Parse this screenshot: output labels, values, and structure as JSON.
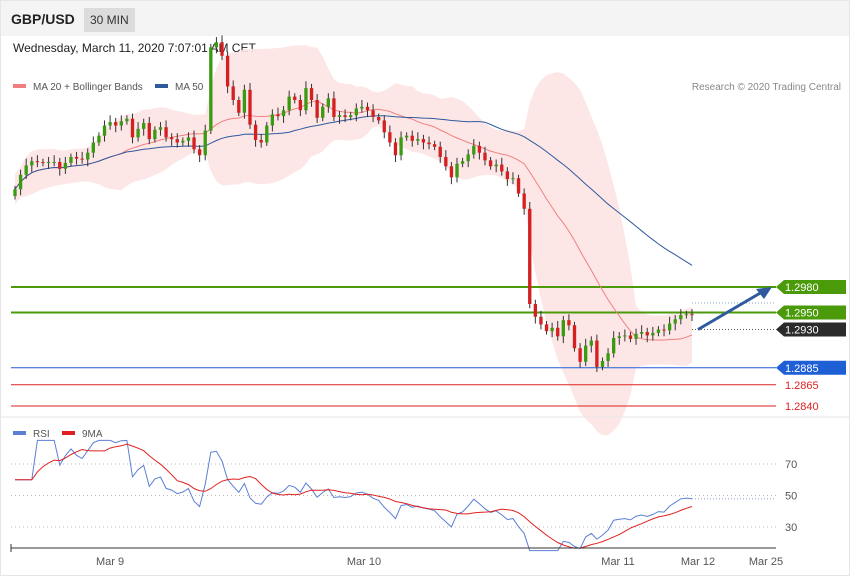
{
  "header": {
    "pair": "GBP/USD",
    "timeframe": "30 MIN"
  },
  "datetime": "Wednesday, March 11, 2020 7:07:01 AM CET",
  "legend": {
    "ma20": "MA 20 + Bollinger Bands",
    "ma50": "MA 50",
    "copyright": "Research © 2020 Trading Central",
    "colors": {
      "ma20": "#f08080",
      "ma50": "#2f5a9e"
    }
  },
  "rsi_legend": {
    "rsi": "RSI",
    "ma9": "9MA",
    "colors": {
      "rsi": "#5b7fd6",
      "ma9": "#e02020"
    }
  },
  "chart_data": [
    {
      "type": "candlestick",
      "x_ticks": [
        "Mar 9",
        "Mar 10",
        "Mar 11",
        "Mar 12",
        "Mar 25"
      ],
      "levels": [
        {
          "value": 1.298,
          "label": "1.2980",
          "kind": "resistance",
          "color": "#4a9a0a"
        },
        {
          "value": 1.295,
          "label": "1.2950",
          "kind": "resistance",
          "color": "#4a9a0a"
        },
        {
          "value": 1.293,
          "label": "1.2930",
          "kind": "last",
          "color": "#2b2b2b"
        },
        {
          "value": 1.2885,
          "label": "1.2885",
          "kind": "pivot",
          "color": "#1f5fd6"
        },
        {
          "value": 1.2865,
          "label": "1.2865",
          "kind": "support",
          "color": "#dd2222"
        },
        {
          "value": 1.284,
          "label": "1.2840",
          "kind": "support",
          "color": "#dd2222"
        }
      ],
      "target_arrow": {
        "from": 1.293,
        "to": 1.298,
        "color": "#2f5a9e"
      },
      "ylim": [
        1.28,
        1.328
      ],
      "closes": [
        1.3095,
        1.3112,
        1.3123,
        1.3128,
        1.3127,
        1.3126,
        1.3127,
        1.3127,
        1.3119,
        1.3126,
        1.3133,
        1.3131,
        1.313,
        1.3138,
        1.315,
        1.3158,
        1.317,
        1.3174,
        1.317,
        1.3175,
        1.3178,
        1.3156,
        1.3166,
        1.3173,
        1.3154,
        1.3165,
        1.3168,
        1.3156,
        1.3154,
        1.315,
        1.3152,
        1.3156,
        1.3142,
        1.3135,
        1.3164,
        1.3262,
        1.3268,
        1.3252,
        1.3216,
        1.32,
        1.3185,
        1.3212,
        1.3171,
        1.3153,
        1.315,
        1.317,
        1.3183,
        1.3181,
        1.3188,
        1.3204,
        1.32,
        1.3188,
        1.3214,
        1.32,
        1.3179,
        1.3192,
        1.3202,
        1.318,
        1.3182,
        1.318,
        1.3182,
        1.319,
        1.3192,
        1.3188,
        1.318,
        1.3176,
        1.3162,
        1.315,
        1.3135,
        1.3156,
        1.3158,
        1.3152,
        1.3154,
        1.315,
        1.3148,
        1.3145,
        1.3133,
        1.3122,
        1.3109,
        1.3125,
        1.3128,
        1.3136,
        1.3146,
        1.3138,
        1.3129,
        1.3122,
        1.3124,
        1.3116,
        1.3107,
        1.3108,
        1.309,
        1.3072,
        1.296,
        1.2945,
        1.2936,
        1.2928,
        1.2932,
        1.2922,
        1.2941,
        1.2935,
        1.2908,
        1.2892,
        1.2911,
        1.2917,
        1.2886,
        1.2893,
        1.2902,
        1.292,
        1.2922,
        1.2923,
        1.2919,
        1.2925,
        1.2927,
        1.2923,
        1.2926,
        1.293,
        1.2929,
        1.2937,
        1.2942,
        1.2947,
        1.2948,
        1.2947
      ]
    },
    {
      "type": "line",
      "name": "RSI",
      "y_ticks": [
        70,
        50,
        30
      ],
      "ylim": [
        0,
        100
      ]
    }
  ]
}
